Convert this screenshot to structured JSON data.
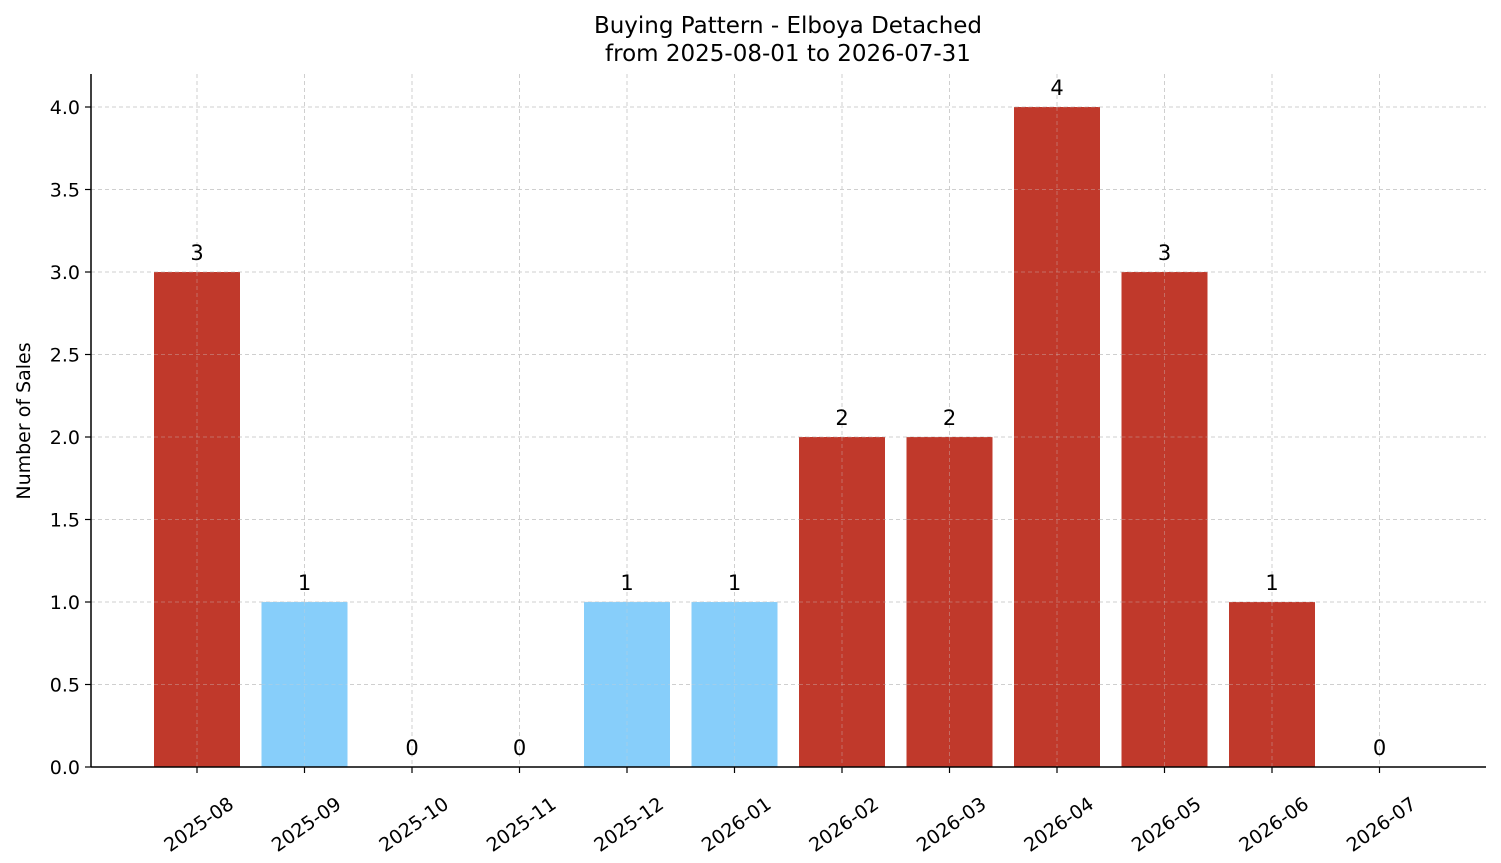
{
  "chart_data": {
    "type": "bar",
    "title_line1": "Buying Pattern - Elboya Detached",
    "title_line2": "from 2025-08-01 to 2026-07-31",
    "xlabel": "",
    "ylabel": "Number of Sales",
    "categories": [
      "2025-08",
      "2025-09",
      "2025-10",
      "2025-11",
      "2025-12",
      "2026-01",
      "2026-02",
      "2026-03",
      "2026-04",
      "2026-05",
      "2026-06",
      "2026-07"
    ],
    "values": [
      3,
      1,
      0,
      0,
      1,
      1,
      2,
      2,
      4,
      3,
      1,
      0
    ],
    "value_labels": [
      "3",
      "1",
      "0",
      "0",
      "1",
      "1",
      "2",
      "2",
      "4",
      "3",
      "1",
      "0"
    ],
    "bar_colors": [
      "#c0392b",
      "#87cefa",
      "#87cefa",
      "#87cefa",
      "#87cefa",
      "#87cefa",
      "#c0392b",
      "#c0392b",
      "#c0392b",
      "#c0392b",
      "#c0392b",
      "#c0392b"
    ],
    "yticks": [
      0.0,
      0.5,
      1.0,
      1.5,
      2.0,
      2.5,
      3.0,
      3.5,
      4.0
    ],
    "ytick_labels": [
      "0.0",
      "0.5",
      "1.0",
      "1.5",
      "2.0",
      "2.5",
      "3.0",
      "3.5",
      "4.0"
    ],
    "ylim": [
      0,
      4.2
    ],
    "grid": true,
    "legend": "none"
  }
}
